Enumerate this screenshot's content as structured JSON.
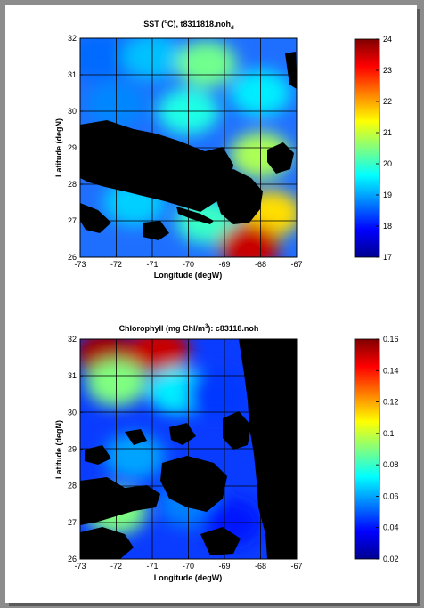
{
  "colors": {
    "frame_border": "#5a5a5a",
    "page": "#ffffff",
    "land": "#000000",
    "grid": "#000000"
  },
  "chart_data": [
    {
      "type": "heatmap",
      "title": "SST (°C), t8311818.noh",
      "title_parts": {
        "pre": "SST (",
        "sup": "o",
        "mid": "C), t8311818.noh",
        "sub": "d"
      },
      "xlabel": "Longitude (degW)",
      "ylabel": "Latitude (degN)",
      "xticks": [
        "-73",
        "-72",
        "-71",
        "-70",
        "-69",
        "-68",
        "-67"
      ],
      "yticks": [
        "32",
        "31",
        "30",
        "29",
        "28",
        "27",
        "26"
      ],
      "xlim": [
        -73,
        -67
      ],
      "ylim": [
        26,
        32
      ],
      "grid": true,
      "colormap": "jet",
      "colorbar": {
        "min": 17,
        "max": 24,
        "ticks": [
          "24",
          "23",
          "22",
          "21",
          "20",
          "19",
          "18",
          "17"
        ]
      },
      "regions": [
        {
          "lon": -72.5,
          "lat": 31.5,
          "value": 18.6
        },
        {
          "lon": -71.0,
          "lat": 31.5,
          "value": 19.2
        },
        {
          "lon": -69.5,
          "lat": 31.3,
          "value": 20.4
        },
        {
          "lon": -68.0,
          "lat": 30.5,
          "value": 19.5
        },
        {
          "lon": -72.0,
          "lat": 30.2,
          "value": 18.8
        },
        {
          "lon": -70.0,
          "lat": 30.0,
          "value": 19.8
        },
        {
          "lon": -68.0,
          "lat": 28.8,
          "value": 20.8
        },
        {
          "lon": -71.5,
          "lat": 27.5,
          "value": 19.3
        },
        {
          "lon": -69.5,
          "lat": 27.0,
          "value": 20.0
        },
        {
          "lon": -67.7,
          "lat": 27.2,
          "value": 21.6
        },
        {
          "lon": -68.3,
          "lat": 26.3,
          "value": 23.5
        }
      ]
    },
    {
      "type": "heatmap",
      "title": "Chlorophyll (mg Chl/m³): c83118.noh",
      "title_parts": {
        "pre": "Chlorophyll (mg Chl/m",
        "sup": "3",
        "mid": "): c83118.noh",
        "sub": ""
      },
      "xlabel": "Longitude (degW)",
      "ylabel": "Latitude (degN)",
      "xticks": [
        "-73",
        "-72",
        "-71",
        "-70",
        "-69",
        "-68",
        "-67"
      ],
      "yticks": [
        "32",
        "31",
        "30",
        "29",
        "28",
        "27",
        "26"
      ],
      "xlim": [
        -73,
        -67
      ],
      "ylim": [
        26,
        32
      ],
      "grid": true,
      "colormap": "jet",
      "colorbar": {
        "min": 0.02,
        "max": 0.16,
        "ticks": [
          "0.16",
          "0.14",
          "0.12",
          "0.1",
          "0.08",
          "0.06",
          "0.04",
          "0.02"
        ]
      },
      "regions": [
        {
          "lon": -72.3,
          "lat": 31.6,
          "value": 0.155
        },
        {
          "lon": -70.8,
          "lat": 31.7,
          "value": 0.15
        },
        {
          "lon": -72.0,
          "lat": 30.8,
          "value": 0.09
        },
        {
          "lon": -70.3,
          "lat": 30.6,
          "value": 0.07
        },
        {
          "lon": -69.2,
          "lat": 30.5,
          "value": 0.045
        },
        {
          "lon": -71.5,
          "lat": 28.8,
          "value": 0.06
        },
        {
          "lon": -72.0,
          "lat": 27.3,
          "value": 0.09
        },
        {
          "lon": -70.0,
          "lat": 27.5,
          "value": 0.055
        },
        {
          "lon": -68.8,
          "lat": 27.0,
          "value": 0.04
        }
      ]
    }
  ]
}
